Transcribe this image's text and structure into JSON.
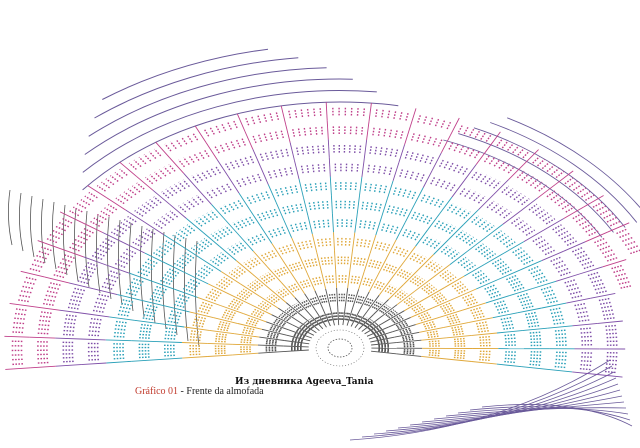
{
  "watermark": "Из дневника Ageeva_Tania",
  "caption": {
    "label": "Gráfico 01",
    "separator": " - ",
    "text": "Frente da almofada"
  },
  "palette": {
    "center": "#555555",
    "inner": "#e0a83a",
    "mid": "#2aa0b8",
    "midOuter": "#7f4fa8",
    "outer": "#c0408a",
    "arcs": "#6a5a9a",
    "lines": "#555555"
  },
  "diagram": {
    "spokes": 26,
    "rounds": 12
  }
}
